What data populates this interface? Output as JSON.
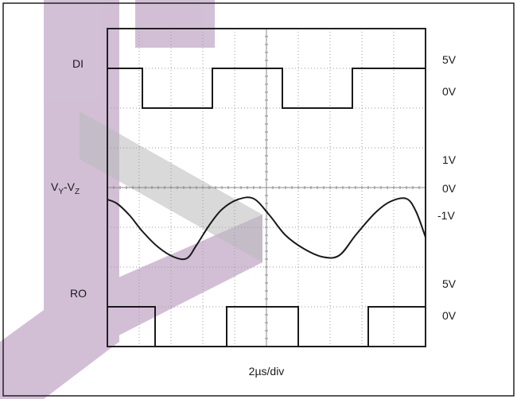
{
  "chart_data": {
    "type": "line",
    "title": "",
    "xlabel": "2µs/div",
    "time_per_division_us": 2,
    "divisions": {
      "x": 10,
      "y": 8
    },
    "grid": true,
    "series": [
      {
        "name": "DI",
        "kind": "digital",
        "upper_level_label": "5V",
        "lower_level_label": "0V",
        "x": [
          0,
          1.1,
          1.1,
          3.3,
          3.3,
          5.5,
          5.5,
          7.7,
          7.7,
          10
        ],
        "y": [
          5,
          5,
          0,
          0,
          5,
          5,
          0,
          0,
          5,
          5
        ]
      },
      {
        "name": "VY-VZ",
        "kind": "analog",
        "level_labels": [
          "1V",
          "0V",
          "-1V"
        ],
        "x": [
          0,
          0.3,
          0.7,
          1.1,
          1.6,
          2.1,
          2.5,
          2.8,
          3.2,
          3.6,
          4.1,
          4.6,
          5.1,
          5.6,
          6.2,
          6.8,
          7.3,
          7.8,
          8.4,
          8.9,
          9.4,
          9.7,
          10
        ],
        "y": [
          0.7,
          0.6,
          0.3,
          -0.1,
          -0.5,
          -0.75,
          -0.78,
          -0.45,
          0.05,
          0.45,
          0.7,
          0.72,
          0.3,
          -0.2,
          -0.55,
          -0.75,
          -0.7,
          -0.2,
          0.35,
          0.65,
          0.72,
          0.4,
          -0.25
        ]
      },
      {
        "name": "RO",
        "kind": "digital",
        "upper_level_label": "5V",
        "lower_level_label": "0V",
        "x": [
          0,
          1.5,
          1.5,
          3.75,
          3.75,
          6.0,
          6.0,
          8.2,
          8.2,
          10
        ],
        "y": [
          5,
          5,
          0,
          0,
          5,
          5,
          0,
          0,
          5,
          5
        ]
      }
    ],
    "labels": {
      "di": "DI",
      "vy": "V",
      "vy_sub": "Y",
      "vz_dash": "-V",
      "vz_sub": "Z",
      "ro": "RO"
    },
    "right_labels": {
      "di_high": "5V",
      "di_low": "0V",
      "v_pos": "1V",
      "v_zero": "0V",
      "v_neg": "-1V",
      "ro_high": "5V",
      "ro_low": "0V"
    },
    "colors": {
      "trace": "#1a1a1a",
      "grid": "#9a9a9a",
      "watermark": "#8a5a96",
      "frame": "#222222"
    }
  }
}
